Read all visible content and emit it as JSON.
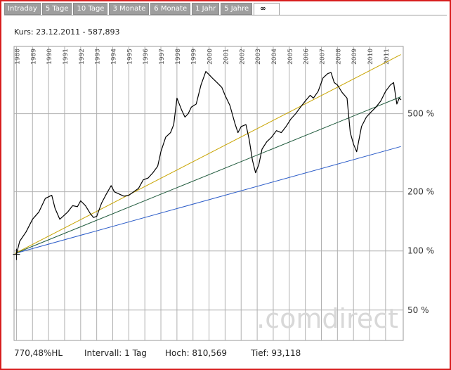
{
  "tabs": [
    "Intraday",
    "5 Tage",
    "10 Tage",
    "3 Monate",
    "6 Monate",
    "1 Jahr",
    "5 Jahre",
    "∞"
  ],
  "active_tab": 7,
  "kurs_line": "Kurs: 23.12.2011 - 587,893",
  "watermark": ".comdirect",
  "footer": {
    "perf": "770,48%HL",
    "intervall": "Intervall: 1 Tag",
    "hoch": "Hoch:  810,569",
    "tief": "Tief:  93,118"
  },
  "colors": {
    "frame": "#d81e1e",
    "price": "#000000",
    "upper_trend": "#c8a400",
    "middle_trend": "#1f5a3c",
    "lower_trend": "#2a5bc8",
    "grid": "#b0b0b0"
  },
  "chart_data": {
    "type": "line",
    "y_scale": "log",
    "x_range": [
      1987.85,
      2012.1
    ],
    "y_range": [
      35,
      1100
    ],
    "x_tick_labels": [
      "1988",
      "1989",
      "1990",
      "1991",
      "1992",
      "1993",
      "1994",
      "1995",
      "1996",
      "1997",
      "1998",
      "1999",
      "2000",
      "2001",
      "2002",
      "2003",
      "2004",
      "2005",
      "2006",
      "2007",
      "2008",
      "2009",
      "2010",
      "2011"
    ],
    "y_ticks": [
      {
        "value": 50,
        "label": "50 %"
      },
      {
        "value": 100,
        "label": "100 %"
      },
      {
        "value": 200,
        "label": "200 %"
      },
      {
        "value": 500,
        "label": "500 %"
      }
    ],
    "series": [
      {
        "role": "price",
        "x": [
          1988.0,
          1988.2,
          1988.6,
          1989.0,
          1989.4,
          1989.8,
          1990.2,
          1990.4,
          1990.7,
          1990.9,
          1991.2,
          1991.5,
          1991.8,
          1992.0,
          1992.3,
          1992.6,
          1992.8,
          1993.0,
          1993.3,
          1993.6,
          1993.9,
          1994.1,
          1994.4,
          1994.7,
          1995.0,
          1995.3,
          1995.6,
          1995.9,
          1996.2,
          1996.5,
          1996.8,
          1997.0,
          1997.3,
          1997.6,
          1997.8,
          1998.0,
          1998.3,
          1998.5,
          1998.7,
          1998.9,
          1999.2,
          1999.5,
          1999.8,
          2000.0,
          2000.2,
          2000.5,
          2000.8,
          2001.0,
          2001.3,
          2001.6,
          2001.8,
          2002.0,
          2002.3,
          2002.5,
          2002.7,
          2002.9,
          2003.1,
          2003.3,
          2003.6,
          2003.9,
          2004.2,
          2004.5,
          2004.8,
          2005.1,
          2005.4,
          2005.7,
          2006.0,
          2006.3,
          2006.5,
          2006.8,
          2007.1,
          2007.4,
          2007.6,
          2007.8,
          2008.0,
          2008.3,
          2008.6,
          2008.8,
          2009.0,
          2009.2,
          2009.5,
          2009.8,
          2010.1,
          2010.4,
          2010.7,
          2011.0,
          2011.3,
          2011.5,
          2011.7,
          2011.85,
          2011.97
        ],
        "values": [
          96,
          112,
          125,
          145,
          158,
          185,
          192,
          165,
          145,
          150,
          158,
          170,
          168,
          180,
          170,
          155,
          148,
          150,
          175,
          195,
          215,
          200,
          195,
          190,
          192,
          200,
          208,
          230,
          235,
          250,
          270,
          320,
          380,
          400,
          440,
          600,
          520,
          480,
          500,
          540,
          560,
          700,
          820,
          790,
          760,
          720,
          680,
          620,
          550,
          450,
          400,
          430,
          440,
          370,
          290,
          250,
          275,
          330,
          360,
          380,
          410,
          400,
          430,
          470,
          500,
          540,
          580,
          620,
          600,
          650,
          760,
          800,
          810,
          720,
          700,
          640,
          600,
          400,
          350,
          320,
          430,
          480,
          510,
          540,
          580,
          650,
          700,
          720,
          560,
          600,
          588
        ]
      },
      {
        "role": "upper_trend",
        "x": [
          1987.9,
          2011.95
        ],
        "values": [
          97,
          1000
        ]
      },
      {
        "role": "middle_trend",
        "x": [
          1987.9,
          2011.95
        ],
        "values": [
          97,
          610
        ]
      },
      {
        "role": "lower_trend",
        "x": [
          1987.9,
          2011.95
        ],
        "values": [
          97,
          340
        ]
      }
    ]
  }
}
